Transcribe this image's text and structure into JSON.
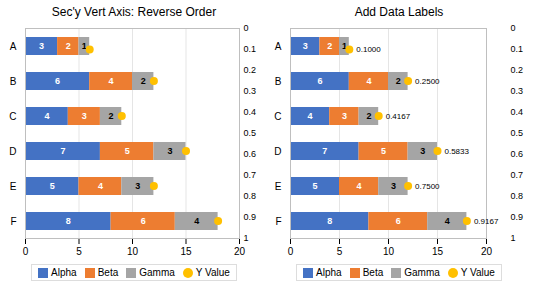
{
  "chart_data": [
    {
      "type": "bar",
      "orientation": "horizontal",
      "stacked": true,
      "title": "Sec'y Vert Axis: Reverse Order",
      "categories": [
        "A",
        "B",
        "C",
        "D",
        "E",
        "F"
      ],
      "series": [
        {
          "name": "Alpha",
          "color": "#4472C4",
          "values": [
            3,
            6,
            4,
            7,
            5,
            8
          ]
        },
        {
          "name": "Beta",
          "color": "#ED7D31",
          "values": [
            2,
            4,
            3,
            5,
            4,
            6
          ]
        },
        {
          "name": "Gamma",
          "color": "#A5A5A5",
          "values": [
            1,
            2,
            2,
            3,
            3,
            4
          ]
        },
        {
          "name": "Y Value",
          "type": "scatter",
          "axis": "y2",
          "color": "#FFC000",
          "marker": "circle",
          "data_labels": false,
          "x": [
            6,
            12,
            9,
            15,
            12,
            18
          ],
          "values": [
            0.1,
            0.25,
            0.4167,
            0.5833,
            0.75,
            0.9167
          ]
        }
      ],
      "xlim": [
        0,
        20
      ],
      "xticks": [
        0,
        5,
        10,
        15,
        20
      ],
      "y2lim": [
        0,
        1
      ],
      "y2ticks": [
        0,
        0.1,
        0.2,
        0.3,
        0.4,
        0.5,
        0.6,
        0.7,
        0.8,
        0.9,
        1
      ],
      "grid": true,
      "legend": "bottom",
      "data_labels": true
    },
    {
      "type": "bar",
      "orientation": "horizontal",
      "stacked": true,
      "title": "Add Data Labels",
      "categories": [
        "A",
        "B",
        "C",
        "D",
        "E",
        "F"
      ],
      "series": [
        {
          "name": "Alpha",
          "color": "#4472C4",
          "values": [
            3,
            6,
            4,
            7,
            5,
            8
          ]
        },
        {
          "name": "Beta",
          "color": "#ED7D31",
          "values": [
            2,
            4,
            3,
            5,
            4,
            6
          ]
        },
        {
          "name": "Gamma",
          "color": "#A5A5A5",
          "values": [
            1,
            2,
            2,
            3,
            3,
            4
          ]
        },
        {
          "name": "Y Value",
          "type": "scatter",
          "axis": "y2",
          "color": "#FFC000",
          "marker": "circle",
          "data_labels": true,
          "x": [
            6,
            12,
            9,
            15,
            12,
            18
          ],
          "values": [
            0.1,
            0.25,
            0.4167,
            0.5833,
            0.75,
            0.9167
          ],
          "value_labels": [
            "0.1000",
            "0.2500",
            "0.4167",
            "0.5833",
            "0.7500",
            "0.9167"
          ]
        }
      ],
      "xlim": [
        0,
        20
      ],
      "xticks": [
        0,
        5,
        10,
        15,
        20
      ],
      "y2lim": [
        0,
        1
      ],
      "y2ticks": [
        0,
        0.1,
        0.2,
        0.3,
        0.4,
        0.5,
        0.6,
        0.7,
        0.8,
        0.9,
        1
      ],
      "grid": true,
      "legend": "bottom",
      "data_labels": true
    }
  ]
}
